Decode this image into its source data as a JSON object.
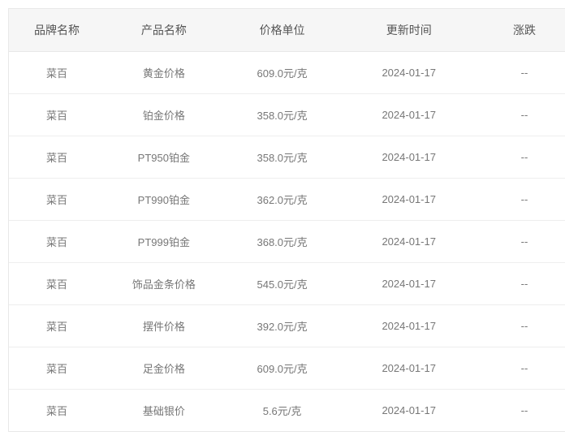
{
  "table": {
    "columns": [
      "品牌名称",
      "产品名称",
      "价格单位",
      "更新时间",
      "涨跌"
    ],
    "rows": [
      [
        "菜百",
        "黄金价格",
        "609.0元/克",
        "2024-01-17",
        "--"
      ],
      [
        "菜百",
        "铂金价格",
        "358.0元/克",
        "2024-01-17",
        "--"
      ],
      [
        "菜百",
        "PT950铂金",
        "358.0元/克",
        "2024-01-17",
        "--"
      ],
      [
        "菜百",
        "PT990铂金",
        "362.0元/克",
        "2024-01-17",
        "--"
      ],
      [
        "菜百",
        "PT999铂金",
        "368.0元/克",
        "2024-01-17",
        "--"
      ],
      [
        "菜百",
        "饰品金条价格",
        "545.0元/克",
        "2024-01-17",
        "--"
      ],
      [
        "菜百",
        "摆件价格",
        "392.0元/克",
        "2024-01-17",
        "--"
      ],
      [
        "菜百",
        "足金价格",
        "609.0元/克",
        "2024-01-17",
        "--"
      ],
      [
        "菜百",
        "基础银价",
        "5.6元/克",
        "2024-01-17",
        "--"
      ]
    ],
    "header_bg": "#f6f6f6",
    "header_color": "#555555",
    "cell_color": "#777777",
    "border_color": "#e8e8e8",
    "row_border_color": "#eeeeee",
    "header_fontsize": 14,
    "cell_fontsize": 13
  }
}
